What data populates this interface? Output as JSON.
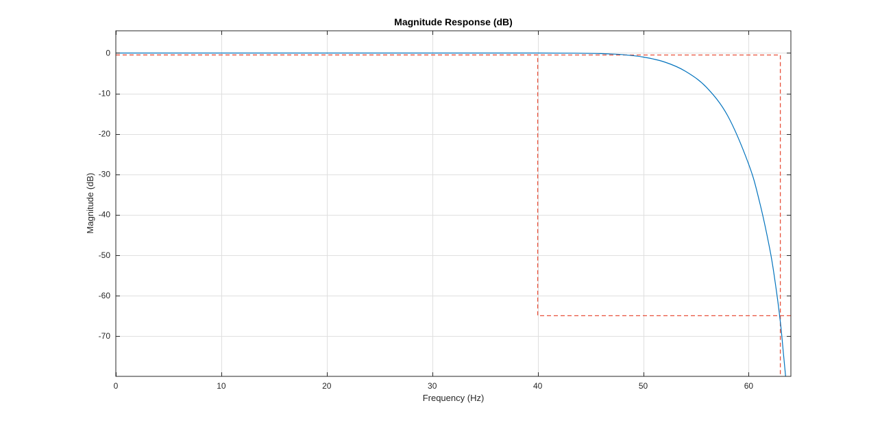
{
  "chart_data": {
    "type": "line",
    "title": "Magnitude Response (dB)",
    "xlabel": "Frequency (Hz)",
    "ylabel": "Magnitude (dB)",
    "xlim": [
      0,
      64
    ],
    "ylim": [
      -80,
      5.5
    ],
    "xticks": [
      0,
      10,
      20,
      30,
      40,
      50,
      60
    ],
    "yticks": [
      0,
      -10,
      -20,
      -30,
      -40,
      -50,
      -60,
      -70
    ],
    "grid": true,
    "legend": "none",
    "colors": {
      "response": "#0072bd",
      "mask": "#e8503a",
      "grid": "#dfdfdf",
      "axes": "#262626"
    },
    "series": [
      {
        "x": [
          0,
          10,
          20,
          30,
          40,
          44,
          46,
          48,
          50,
          52,
          54,
          56,
          58,
          60,
          61,
          62,
          62.5,
          63,
          63.3,
          63.5
        ],
        "y": [
          0,
          0,
          0,
          0,
          0,
          -0.05,
          -0.15,
          -0.4,
          -1.0,
          -2.2,
          -4.5,
          -8.5,
          -15.5,
          -27.5,
          -36.5,
          -48.5,
          -56.5,
          -66.5,
          -74.5,
          -80
        ]
      }
    ],
    "mask_lines": [
      {
        "x": [
          0,
          40,
          40,
          64
        ],
        "y": [
          -0.5,
          -0.5,
          -65,
          -65
        ]
      },
      {
        "x": [
          0,
          63,
          63
        ],
        "y": [
          -0.5,
          -0.5,
          -80
        ]
      }
    ]
  }
}
